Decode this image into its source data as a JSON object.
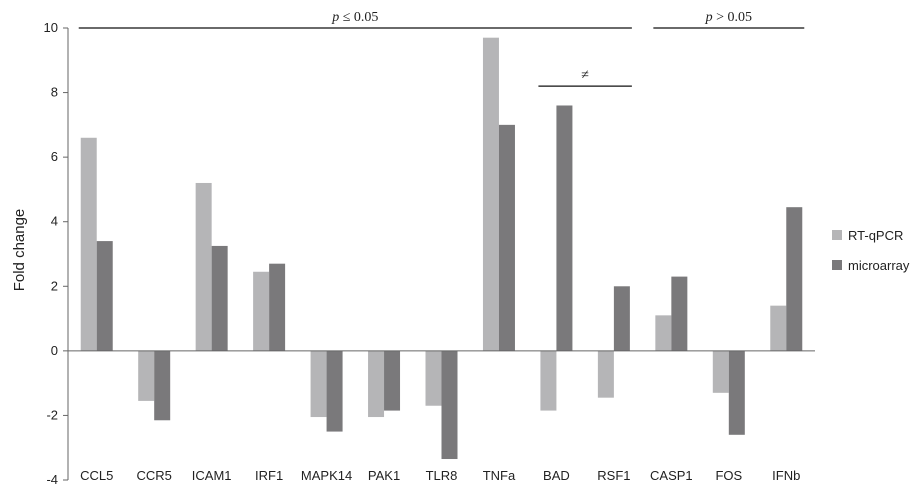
{
  "chart_data": {
    "type": "bar",
    "ylabel": "Fold change",
    "ylim": [
      -4,
      10
    ],
    "yticks": [
      -4,
      -2,
      0,
      2,
      4,
      6,
      8,
      10
    ],
    "categories": [
      "CCL5",
      "CCR5",
      "ICAM1",
      "IRF1",
      "MAPK14",
      "PAK1",
      "TLR8",
      "TNFa",
      "BAD",
      "RSF1",
      "CASP1",
      "FOS",
      "IFNb"
    ],
    "series": [
      {
        "name": "RT-qPCR",
        "color": "#b5b5b7",
        "values": [
          6.6,
          -1.55,
          5.2,
          2.45,
          -2.05,
          -2.05,
          -1.7,
          9.7,
          -1.85,
          -1.45,
          1.1,
          -1.3,
          1.4
        ]
      },
      {
        "name": "microarray",
        "color": "#7a797b",
        "values": [
          3.4,
          -2.15,
          3.25,
          2.7,
          -2.5,
          -1.85,
          -3.35,
          7.0,
          7.6,
          2.0,
          2.3,
          -2.6,
          4.45
        ]
      }
    ],
    "legend_position": "right",
    "grid": false,
    "annotations": [
      {
        "text": "p ≤ 0.05",
        "from": "CCL5",
        "to": "RSF1",
        "y": 10
      },
      {
        "text": "≠",
        "from": "BAD",
        "to": "RSF1",
        "y": 8.2
      },
      {
        "text": "p > 0.05",
        "from": "CASP1",
        "to": "IFNb",
        "y": 10
      }
    ]
  }
}
